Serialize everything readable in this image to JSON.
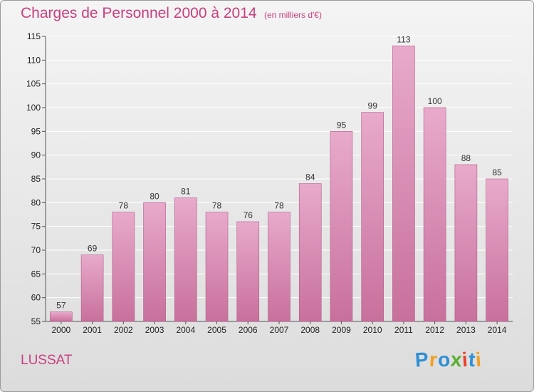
{
  "chart_data": {
    "type": "bar",
    "title": "Charges de Personnel 2000 à 2014",
    "subtitle": "(en milliers d'€)",
    "categories": [
      "2000",
      "2001",
      "2002",
      "2003",
      "2004",
      "2005",
      "2006",
      "2007",
      "2008",
      "2009",
      "2010",
      "2011",
      "2012",
      "2013",
      "2014"
    ],
    "values": [
      57,
      69,
      78,
      80,
      81,
      78,
      76,
      78,
      84,
      95,
      99,
      113,
      100,
      88,
      85
    ],
    "ylim": [
      55,
      115
    ],
    "yticks": [
      55,
      60,
      65,
      70,
      75,
      80,
      85,
      90,
      95,
      100,
      105,
      110,
      115
    ],
    "grid": true,
    "bar_color": "#c8709c"
  },
  "footer": {
    "town": "LUSSAT",
    "logo": {
      "letters": [
        "P",
        "r",
        "o",
        "x",
        "i",
        "t",
        "i"
      ],
      "colors": [
        "#2e8fd6",
        "#f0a020",
        "#2e8fd6",
        "#58b030",
        "#e8402a",
        "#2e8fd6",
        "#f0a020"
      ]
    }
  }
}
